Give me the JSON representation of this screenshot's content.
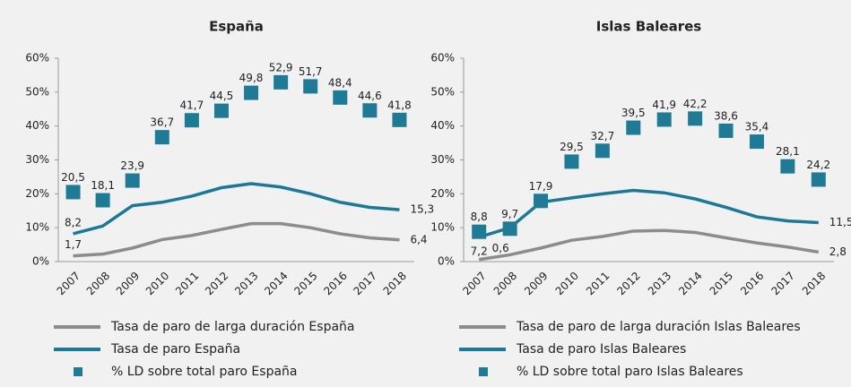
{
  "chart_data": [
    {
      "type": "line",
      "title": "España",
      "categories": [
        "2007",
        "2008",
        "2009",
        "2010",
        "2011",
        "2012",
        "2013",
        "2014",
        "2015",
        "2016",
        "2017",
        "2018"
      ],
      "ylim": [
        0,
        60
      ],
      "yticks": [
        {
          "value": 0,
          "label": "0%"
        },
        {
          "value": 10,
          "label": "10%"
        },
        {
          "value": 20,
          "label": "20%"
        },
        {
          "value": 30,
          "label": "30%"
        },
        {
          "value": 40,
          "label": "40%"
        },
        {
          "value": 50,
          "label": "50%"
        },
        {
          "value": 60,
          "label": "60%"
        }
      ],
      "series": [
        {
          "name": "Tasa de paro de larga duración España",
          "style": "line",
          "color": "#8c8c8c",
          "values": [
            1.7,
            2.2,
            4.0,
            6.5,
            7.7,
            9.5,
            11.2,
            11.2,
            10.0,
            8.2,
            7.0,
            6.4
          ],
          "value_labels": [
            "1,7",
            null,
            null,
            null,
            null,
            null,
            null,
            null,
            null,
            null,
            null,
            "6,4"
          ]
        },
        {
          "name": "Tasa de paro España",
          "style": "line",
          "color": "#1b7896",
          "values": [
            8.2,
            10.5,
            16.5,
            17.5,
            19.3,
            21.8,
            23.0,
            22.0,
            20.0,
            17.5,
            16.0,
            15.3
          ],
          "value_labels": [
            "8,2",
            null,
            null,
            null,
            null,
            null,
            null,
            null,
            null,
            null,
            null,
            "15,3"
          ]
        },
        {
          "name": "% LD sobre total paro España",
          "style": "square",
          "color": "#1f7b95",
          "values": [
            20.5,
            18.1,
            23.9,
            36.7,
            41.7,
            44.5,
            49.8,
            52.9,
            51.7,
            48.4,
            44.6,
            41.8
          ],
          "value_labels": [
            "20,5",
            "18,1",
            "23,9",
            "36,7",
            "41,7",
            "44,5",
            "49,8",
            "52,9",
            "51,7",
            "48,4",
            "44,6",
            "41,8"
          ]
        }
      ]
    },
    {
      "type": "line",
      "title": "Islas Baleares",
      "categories": [
        "2007",
        "2008",
        "2009",
        "2010",
        "2011",
        "2012",
        "2013",
        "2014",
        "2015",
        "2016",
        "2017",
        "2018"
      ],
      "ylim": [
        0,
        60
      ],
      "yticks": [
        {
          "value": 0,
          "label": "0%"
        },
        {
          "value": 10,
          "label": "10%"
        },
        {
          "value": 20,
          "label": "20%"
        },
        {
          "value": 30,
          "label": "30%"
        },
        {
          "value": 40,
          "label": "40%"
        },
        {
          "value": 50,
          "label": "50%"
        },
        {
          "value": 60,
          "label": "60%"
        }
      ],
      "series": [
        {
          "name": "Tasa de paro de larga duración Islas Baleares",
          "style": "line",
          "color": "#8c8c8c",
          "values": [
            0.6,
            2.0,
            4.0,
            6.3,
            7.4,
            9.0,
            9.2,
            8.6,
            7.0,
            5.5,
            4.3,
            2.8
          ],
          "value_labels": [
            "0,6",
            null,
            null,
            null,
            null,
            null,
            null,
            null,
            null,
            null,
            null,
            "2,8"
          ]
        },
        {
          "name": "Tasa de paro Islas Baleares",
          "style": "line",
          "color": "#1b7896",
          "values": [
            7.2,
            10.0,
            17.5,
            18.8,
            20.0,
            21.0,
            20.3,
            18.5,
            16.0,
            13.2,
            12.0,
            11.5
          ],
          "value_labels": [
            "7,2",
            null,
            null,
            null,
            null,
            null,
            null,
            null,
            null,
            null,
            null,
            "11,5"
          ]
        },
        {
          "name": "% LD sobre total paro Islas Baleares",
          "style": "square",
          "color": "#1f7b95",
          "values": [
            8.8,
            9.7,
            17.9,
            29.5,
            32.7,
            39.5,
            41.9,
            42.2,
            38.6,
            35.4,
            28.1,
            24.2
          ],
          "value_labels": [
            "8,8",
            "9,7",
            "17,9",
            "29,5",
            "32,7",
            "39,5",
            "41,9",
            "42,2",
            "38,6",
            "35,4",
            "28,1",
            "24,2"
          ]
        }
      ]
    }
  ]
}
